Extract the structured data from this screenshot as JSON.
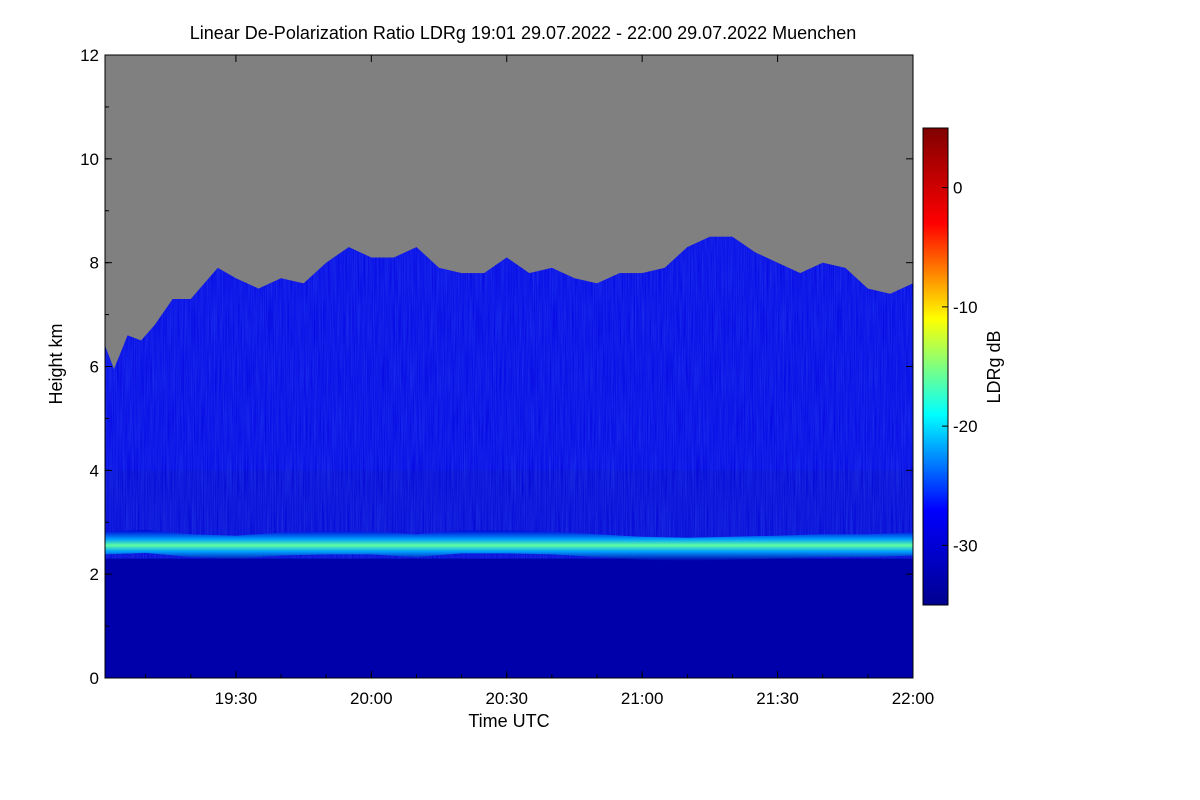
{
  "chart_data": {
    "type": "heatmap",
    "title": "Linear De-Polarization Ratio LDRg   19:01 29.07.2022 - 22:00 29.07.2022 Muenchen",
    "xlabel": "Time UTC",
    "ylabel": "Height km",
    "colorbar_label": "LDRg dB",
    "x_range_minutes_utc": [
      1141,
      1320
    ],
    "x_ticks": [
      {
        "minute": 1170,
        "label": "19:30"
      },
      {
        "minute": 1200,
        "label": "20:00"
      },
      {
        "minute": 1230,
        "label": "20:30"
      },
      {
        "minute": 1260,
        "label": "21:00"
      },
      {
        "minute": 1290,
        "label": "21:30"
      },
      {
        "minute": 1320,
        "label": "22:00"
      }
    ],
    "ylim_km": [
      0,
      12
    ],
    "y_ticks": [
      {
        "value": 0,
        "label": "0"
      },
      {
        "value": 2,
        "label": "2"
      },
      {
        "value": 4,
        "label": "4"
      },
      {
        "value": 6,
        "label": "6"
      },
      {
        "value": 8,
        "label": "8"
      },
      {
        "value": 10,
        "label": "10"
      },
      {
        "value": 12,
        "label": "12"
      }
    ],
    "colorbar_range_db": [
      -35,
      5
    ],
    "colorbar_ticks": [
      {
        "value": 0,
        "label": "0"
      },
      {
        "value": -10,
        "label": "-10"
      },
      {
        "value": -20,
        "label": "-20"
      },
      {
        "value": -30,
        "label": "-30"
      }
    ],
    "no_data_color": "#808080",
    "colormap": [
      "#00008f",
      "#0000ff",
      "#00ffff",
      "#ffff00",
      "#ff0000",
      "#800000"
    ],
    "signal_top_km": [
      {
        "minute": 1141,
        "km": 6.4
      },
      {
        "minute": 1143,
        "km": 5.95
      },
      {
        "minute": 1146,
        "km": 6.6
      },
      {
        "minute": 1149,
        "km": 6.5
      },
      {
        "minute": 1152,
        "km": 6.8
      },
      {
        "minute": 1156,
        "km": 7.3
      },
      {
        "minute": 1160,
        "km": 7.3
      },
      {
        "minute": 1163,
        "km": 7.6
      },
      {
        "minute": 1166,
        "km": 7.9
      },
      {
        "minute": 1170,
        "km": 7.7
      },
      {
        "minute": 1175,
        "km": 7.5
      },
      {
        "minute": 1180,
        "km": 7.7
      },
      {
        "minute": 1185,
        "km": 7.6
      },
      {
        "minute": 1190,
        "km": 8.0
      },
      {
        "minute": 1195,
        "km": 8.3
      },
      {
        "minute": 1200,
        "km": 8.1
      },
      {
        "minute": 1205,
        "km": 8.1
      },
      {
        "minute": 1210,
        "km": 8.3
      },
      {
        "minute": 1215,
        "km": 7.9
      },
      {
        "minute": 1220,
        "km": 7.8
      },
      {
        "minute": 1225,
        "km": 7.8
      },
      {
        "minute": 1230,
        "km": 8.1
      },
      {
        "minute": 1235,
        "km": 7.8
      },
      {
        "minute": 1240,
        "km": 7.9
      },
      {
        "minute": 1245,
        "km": 7.7
      },
      {
        "minute": 1250,
        "km": 7.6
      },
      {
        "minute": 1255,
        "km": 7.8
      },
      {
        "minute": 1260,
        "km": 7.8
      },
      {
        "minute": 1265,
        "km": 7.9
      },
      {
        "minute": 1270,
        "km": 8.3
      },
      {
        "minute": 1275,
        "km": 8.5
      },
      {
        "minute": 1280,
        "km": 8.5
      },
      {
        "minute": 1285,
        "km": 8.2
      },
      {
        "minute": 1290,
        "km": 8.0
      },
      {
        "minute": 1295,
        "km": 7.8
      },
      {
        "minute": 1300,
        "km": 8.0
      },
      {
        "minute": 1305,
        "km": 7.9
      },
      {
        "minute": 1310,
        "km": 7.5
      },
      {
        "minute": 1315,
        "km": 7.4
      },
      {
        "minute": 1320,
        "km": 7.6
      }
    ],
    "aerosol_layer_center_km": [
      {
        "minute": 1141,
        "km": 2.6
      },
      {
        "minute": 1150,
        "km": 2.63
      },
      {
        "minute": 1160,
        "km": 2.55
      },
      {
        "minute": 1170,
        "km": 2.52
      },
      {
        "minute": 1180,
        "km": 2.58
      },
      {
        "minute": 1190,
        "km": 2.6
      },
      {
        "minute": 1200,
        "km": 2.6
      },
      {
        "minute": 1210,
        "km": 2.55
      },
      {
        "minute": 1220,
        "km": 2.62
      },
      {
        "minute": 1230,
        "km": 2.62
      },
      {
        "minute": 1240,
        "km": 2.6
      },
      {
        "minute": 1250,
        "km": 2.55
      },
      {
        "minute": 1260,
        "km": 2.5
      },
      {
        "minute": 1270,
        "km": 2.48
      },
      {
        "minute": 1280,
        "km": 2.5
      },
      {
        "minute": 1290,
        "km": 2.52
      },
      {
        "minute": 1300,
        "km": 2.55
      },
      {
        "minute": 1310,
        "km": 2.55
      },
      {
        "minute": 1320,
        "km": 2.58
      }
    ],
    "aerosol_layer_ldr_db": -16,
    "aerosol_layer_half_width_km": 0.22,
    "background_ldr_db": {
      "below_layer": -33,
      "above_layer": -30,
      "near_top": -27
    }
  }
}
